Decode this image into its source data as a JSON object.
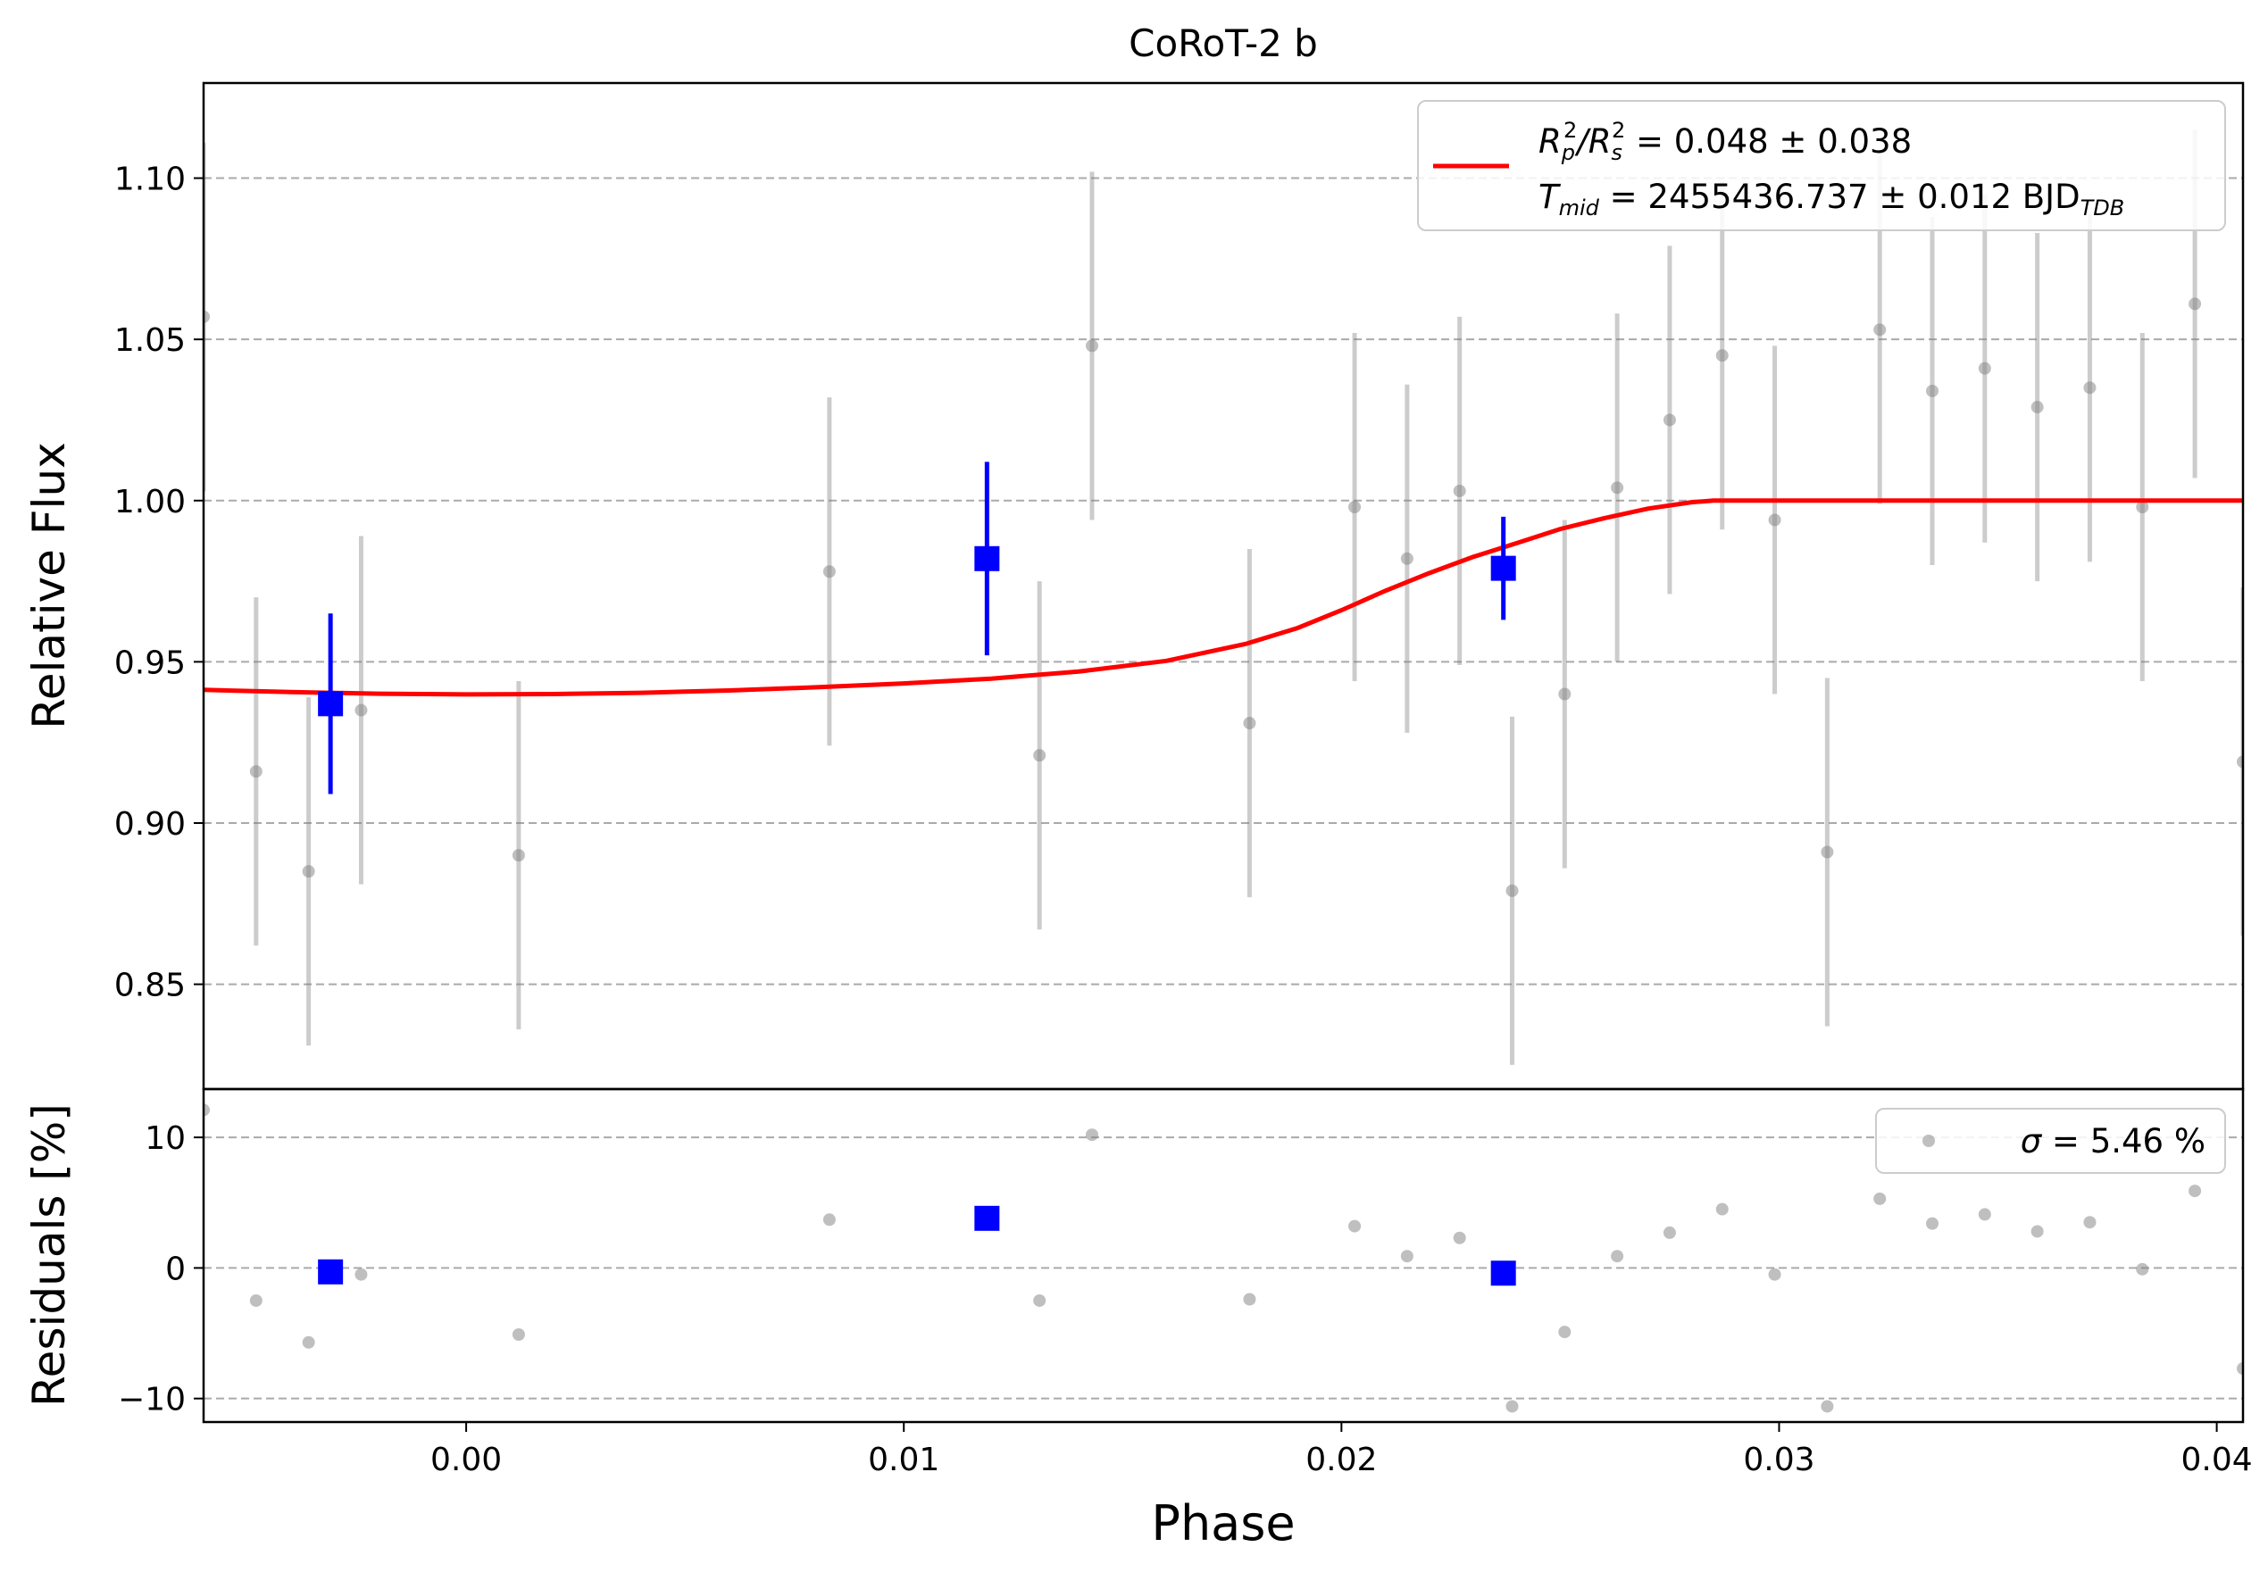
{
  "chart_data": {
    "title": "CoRoT-2 b",
    "colors": {
      "raw": "#808080",
      "binned": "#0000ff",
      "model": "#ff0000",
      "grid": "#aaaaaa"
    },
    "main": {
      "type": "scatter",
      "ylabel": "Relative Flux",
      "xlim": [
        -0.006,
        0.0406
      ],
      "ylim": [
        0.8175,
        1.1295
      ],
      "yticks": [
        0.85,
        0.9,
        0.95,
        1.0,
        1.05,
        1.1
      ],
      "ytick_labels": [
        "0.85",
        "0.90",
        "0.95",
        "1.00",
        "1.05",
        "1.10"
      ],
      "grid": "horizontal-dashed",
      "legend": {
        "placement": "top-right",
        "line1_main": "R",
        "line1_sub1": "p",
        "line1_sup1": "2",
        "line1_sep": "/R",
        "line1_sub2": "s",
        "line1_sup2": "2",
        "line1_rest": " = 0.048 ± 0.038",
        "line2_main": "T",
        "line2_sub": "mid",
        "line2_rest": " = 2455436.737 ± 0.012 BJD",
        "line2_unit_sub": "TDB"
      },
      "raw_points": [
        {
          "x": -0.006,
          "y": 1.057,
          "err": 0.054
        },
        {
          "x": -0.0048,
          "y": 0.916,
          "err": 0.054
        },
        {
          "x": -0.0036,
          "y": 0.885,
          "err": 0.054
        },
        {
          "x": -0.0024,
          "y": 0.935,
          "err": 0.054
        },
        {
          "x": 0.0012,
          "y": 0.89,
          "err": 0.054
        },
        {
          "x": 0.0083,
          "y": 0.978,
          "err": 0.054
        },
        {
          "x": 0.0131,
          "y": 0.921,
          "err": 0.054
        },
        {
          "x": 0.0143,
          "y": 1.048,
          "err": 0.054
        },
        {
          "x": 0.0179,
          "y": 0.931,
          "err": 0.054
        },
        {
          "x": 0.0203,
          "y": 0.998,
          "err": 0.054
        },
        {
          "x": 0.0215,
          "y": 0.982,
          "err": 0.054
        },
        {
          "x": 0.0227,
          "y": 1.003,
          "err": 0.054
        },
        {
          "x": 0.0239,
          "y": 0.879,
          "err": 0.054
        },
        {
          "x": 0.0251,
          "y": 0.94,
          "err": 0.054
        },
        {
          "x": 0.0263,
          "y": 1.004,
          "err": 0.054
        },
        {
          "x": 0.0275,
          "y": 1.025,
          "err": 0.054
        },
        {
          "x": 0.0287,
          "y": 1.045,
          "err": 0.054
        },
        {
          "x": 0.0299,
          "y": 0.994,
          "err": 0.054
        },
        {
          "x": 0.0311,
          "y": 0.891,
          "err": 0.054
        },
        {
          "x": 0.0323,
          "y": 1.053,
          "err": 0.054
        },
        {
          "x": 0.0335,
          "y": 1.034,
          "err": 0.054
        },
        {
          "x": 0.0347,
          "y": 1.041,
          "err": 0.054
        },
        {
          "x": 0.0359,
          "y": 1.029,
          "err": 0.054
        },
        {
          "x": 0.0371,
          "y": 1.035,
          "err": 0.054
        },
        {
          "x": 0.0383,
          "y": 0.998,
          "err": 0.054
        },
        {
          "x": 0.0395,
          "y": 1.061,
          "err": 0.054
        },
        {
          "x": 0.0406,
          "y": 0.919,
          "err": 0.054
        }
      ],
      "binned_points": [
        {
          "x": -0.0031,
          "y": 0.937,
          "err": 0.028
        },
        {
          "x": 0.0119,
          "y": 0.982,
          "err": 0.03
        },
        {
          "x": 0.0237,
          "y": 0.979,
          "err": 0.016
        }
      ],
      "model": {
        "name": "transit model",
        "x": [
          -0.006,
          -0.004,
          -0.002,
          0.0,
          0.002,
          0.004,
          0.006,
          0.008,
          0.01,
          0.012,
          0.014,
          0.016,
          0.0178,
          0.019,
          0.02,
          0.021,
          0.022,
          0.023,
          0.024,
          0.025,
          0.026,
          0.027,
          0.028,
          0.0285,
          0.03,
          0.035,
          0.0406
        ],
        "y": [
          0.9413,
          0.9406,
          0.9401,
          0.9399,
          0.94,
          0.9404,
          0.9411,
          0.9421,
          0.9433,
          0.9448,
          0.947,
          0.9503,
          0.9555,
          0.9605,
          0.966,
          0.972,
          0.9775,
          0.9825,
          0.9868,
          0.9912,
          0.9945,
          0.9975,
          0.9995,
          1.0,
          1.0,
          1.0,
          1.0
        ]
      }
    },
    "residuals": {
      "type": "scatter",
      "ylabel": "Residuals [%]",
      "xlabel": "Phase",
      "xlim": [
        -0.006,
        0.0406
      ],
      "ylim": [
        -11.8,
        13.7
      ],
      "yticks": [
        -10,
        0,
        10
      ],
      "ytick_labels": [
        "−10",
        "0",
        "10"
      ],
      "xticks": [
        0.0,
        0.01,
        0.02,
        0.03,
        0.04
      ],
      "xtick_labels": [
        "0.00",
        "0.01",
        "0.02",
        "0.03",
        "0.04"
      ],
      "grid": "horizontal-dashed",
      "legend": {
        "placement": "top-right",
        "sigma_symbol": "σ",
        "sigma_rest": " = 5.46 %"
      },
      "raw_points": [
        {
          "x": -0.006,
          "y": 12.1
        },
        {
          "x": -0.0048,
          "y": -2.5
        },
        {
          "x": -0.0036,
          "y": -5.7
        },
        {
          "x": -0.0024,
          "y": -0.5
        },
        {
          "x": 0.0012,
          "y": -5.1
        },
        {
          "x": 0.0083,
          "y": 3.7
        },
        {
          "x": 0.0131,
          "y": -2.5
        },
        {
          "x": 0.0143,
          "y": 10.2
        },
        {
          "x": 0.0179,
          "y": -2.4
        },
        {
          "x": 0.0203,
          "y": 3.2
        },
        {
          "x": 0.0215,
          "y": 0.9
        },
        {
          "x": 0.0227,
          "y": 2.3
        },
        {
          "x": 0.0239,
          "y": -10.6
        },
        {
          "x": 0.0251,
          "y": -4.9
        },
        {
          "x": 0.0263,
          "y": 0.9
        },
        {
          "x": 0.0275,
          "y": 2.7
        },
        {
          "x": 0.0287,
          "y": 4.5
        },
        {
          "x": 0.0299,
          "y": -0.5
        },
        {
          "x": 0.0311,
          "y": -10.6
        },
        {
          "x": 0.0323,
          "y": 5.3
        },
        {
          "x": 0.0335,
          "y": 3.4
        },
        {
          "x": 0.0347,
          "y": 4.1
        },
        {
          "x": 0.0359,
          "y": 2.8
        },
        {
          "x": 0.0371,
          "y": 3.5
        },
        {
          "x": 0.0383,
          "y": -0.1
        },
        {
          "x": 0.0395,
          "y": 5.9
        },
        {
          "x": 0.0406,
          "y": -7.7
        }
      ],
      "binned_points": [
        {
          "x": -0.0031,
          "y": -0.3
        },
        {
          "x": 0.0119,
          "y": 3.8
        },
        {
          "x": 0.0237,
          "y": -0.4
        }
      ]
    }
  }
}
